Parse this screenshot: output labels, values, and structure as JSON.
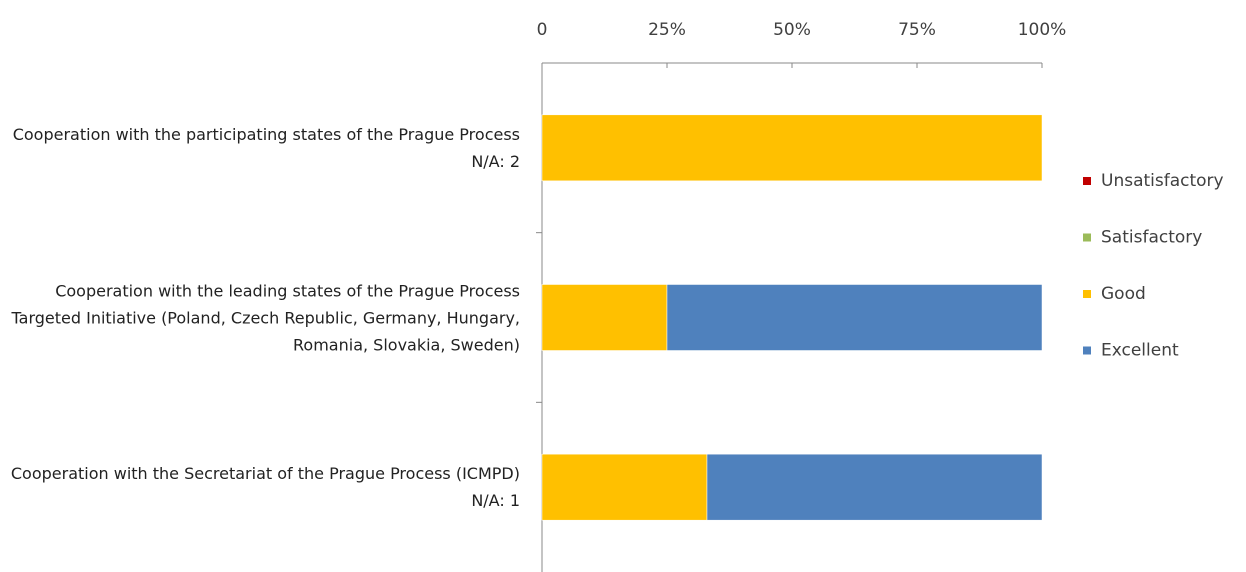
{
  "chart_data": {
    "type": "stacked-barh",
    "categories": [
      "Cooperation with the participating states of the Prague Process  N/A: 2",
      "Cooperation with the leading states of the Prague Process Targeted Initiative (Poland, Czech Republic, Germany, Hungary, Romania, Slovakia, Sweden)",
      "Cooperation with the Secretariat of the Prague Process (ICMPD) N/A: 1"
    ],
    "series": [
      {
        "name": "Unsatisfactory",
        "color": "#c00000",
        "values": [
          0,
          0,
          0
        ]
      },
      {
        "name": "Satisfactory",
        "color": "#9bbb59",
        "values": [
          0,
          0,
          0
        ]
      },
      {
        "name": "Good",
        "color": "#ffc000",
        "values": [
          100,
          25,
          33
        ]
      },
      {
        "name": "Excellent",
        "color": "#4f81bd",
        "values": [
          0,
          75,
          67
        ]
      }
    ],
    "xlim": [
      0,
      100
    ],
    "xticks": [
      0,
      {
        "value": 25,
        "label": "25%"
      },
      {
        "value": 50,
        "label": "50%"
      },
      {
        "value": 75,
        "label": "75%"
      },
      {
        "value": 100,
        "label": "100%"
      }
    ],
    "legend": "right"
  }
}
